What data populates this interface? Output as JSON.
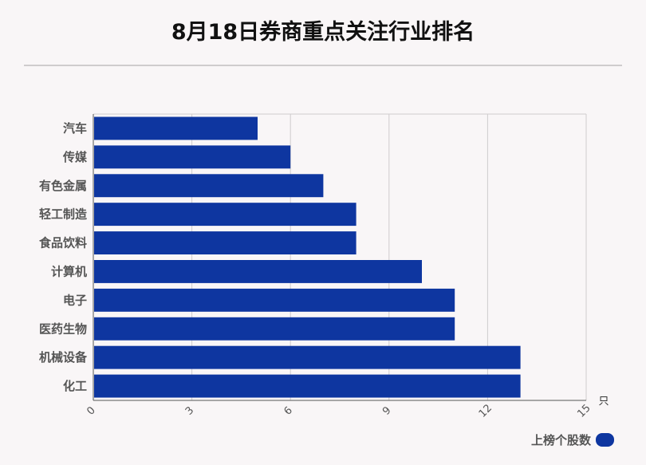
{
  "header": {
    "title": "8月18日券商重点关注行业排名"
  },
  "legend": {
    "label": "上榜个股数"
  },
  "colors": {
    "bar": "#0e36a0",
    "grid": "#cfcccd",
    "axis": "#555555"
  },
  "chart_data": {
    "type": "bar",
    "orientation": "horizontal",
    "title": "8月18日券商重点关注行业排名",
    "categories": [
      "汽车",
      "传媒",
      "有色金属",
      "轻工制造",
      "食品饮料",
      "计算机",
      "电子",
      "医药生物",
      "机械设备",
      "化工"
    ],
    "series": [
      {
        "name": "上榜个股数",
        "values": [
          5,
          6,
          7,
          8,
          8,
          10,
          11,
          11,
          13,
          13
        ]
      }
    ],
    "xticks": [
      "0",
      "3",
      "6",
      "9",
      "12",
      "15"
    ],
    "xlim": [
      0,
      15
    ],
    "xunit": "只",
    "grid": true,
    "legend_position": "bottom-right"
  }
}
